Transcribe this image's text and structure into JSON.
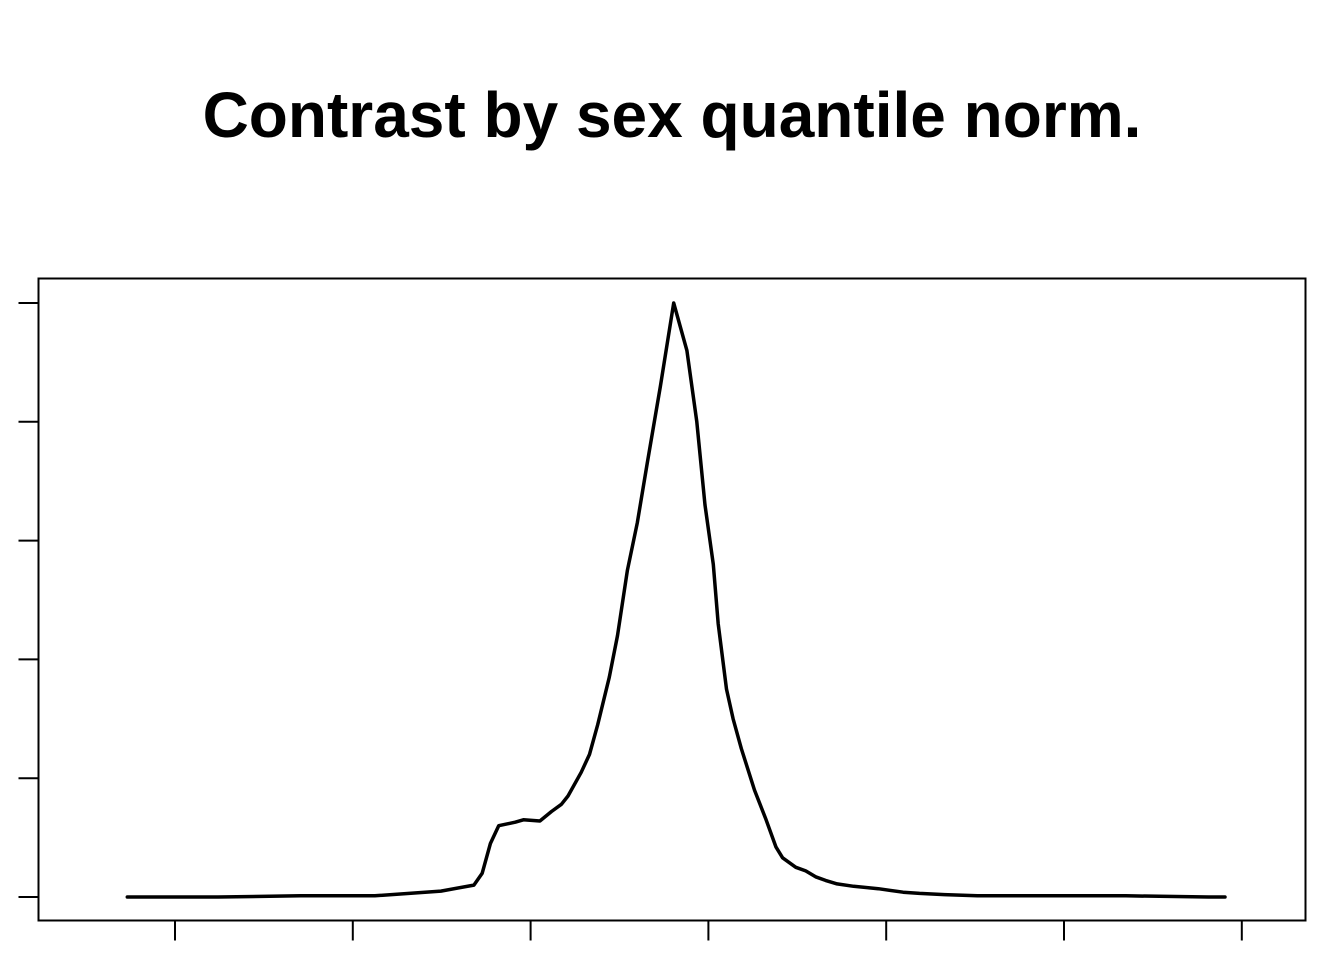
{
  "chart_data": {
    "type": "line",
    "title": "Contrast by sex quantile norm.",
    "xlabel": "",
    "ylabel": "",
    "x_tick_count": 7,
    "y_tick_count": 6,
    "xlim": [
      -1.3,
      5.8
    ],
    "ylim": [
      0,
      5
    ],
    "grid": false,
    "line_color": "#000000",
    "series": [
      {
        "x": [
          -1.05,
          -0.5,
          0.0,
          0.45,
          0.85,
          1.05,
          1.1,
          1.15,
          1.2,
          1.3,
          1.35,
          1.45,
          1.52,
          1.58,
          1.62,
          1.7,
          1.75,
          1.8,
          1.87,
          1.92,
          1.98,
          2.04,
          2.1,
          2.18,
          2.26,
          2.34,
          2.4,
          2.45,
          2.5,
          2.53,
          2.58,
          2.62,
          2.67,
          2.75,
          2.82,
          2.88,
          2.92,
          3.0,
          3.06,
          3.12,
          3.18,
          3.25,
          3.35,
          3.5,
          3.65,
          3.75,
          3.9,
          4.1,
          4.5,
          5.0,
          5.5,
          5.6
        ],
        "y": [
          0.0,
          0.0,
          0.01,
          0.01,
          0.05,
          0.1,
          0.2,
          0.45,
          0.6,
          0.63,
          0.65,
          0.64,
          0.72,
          0.78,
          0.85,
          1.05,
          1.2,
          1.45,
          1.85,
          2.2,
          2.75,
          3.15,
          3.65,
          4.3,
          5.0,
          4.6,
          4.0,
          3.3,
          2.8,
          2.3,
          1.75,
          1.5,
          1.25,
          0.9,
          0.65,
          0.42,
          0.33,
          0.25,
          0.22,
          0.17,
          0.14,
          0.11,
          0.09,
          0.07,
          0.04,
          0.03,
          0.02,
          0.01,
          0.01,
          0.01,
          0.0,
          0.0
        ]
      }
    ]
  }
}
